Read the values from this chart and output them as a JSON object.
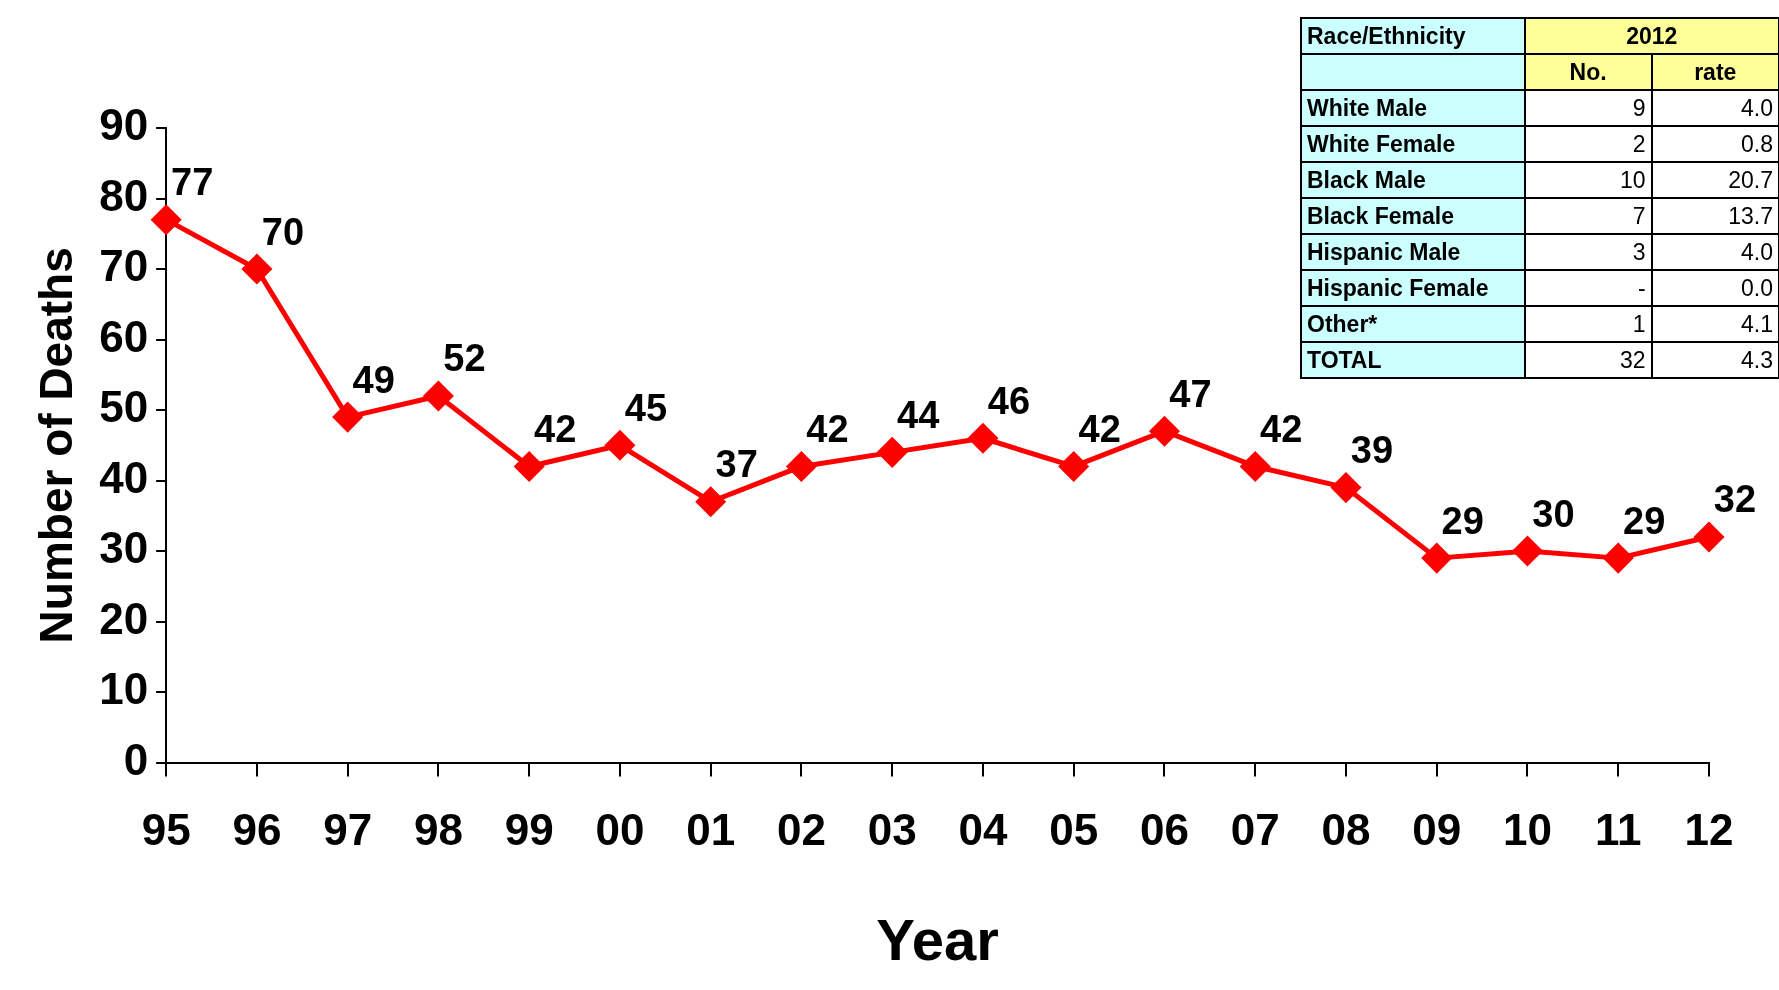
{
  "chart_data": [
    {
      "type": "line",
      "xlabel": "Year",
      "ylabel": "Number of Deaths",
      "categories": [
        "95",
        "96",
        "97",
        "98",
        "99",
        "00",
        "01",
        "02",
        "03",
        "04",
        "05",
        "06",
        "07",
        "08",
        "09",
        "10",
        "11",
        "12"
      ],
      "values": [
        77,
        70,
        49,
        52,
        42,
        45,
        37,
        42,
        44,
        46,
        42,
        47,
        42,
        39,
        29,
        30,
        29,
        32
      ],
      "color": "#ff0000",
      "marker": "diamond",
      "line_style": "solid",
      "data_labels": true,
      "ylim": [
        0,
        90
      ],
      "yticks": [
        0,
        10,
        20,
        30,
        40,
        50,
        60,
        70,
        80,
        90
      ]
    },
    {
      "type": "other",
      "annotations": [
        "Race/Ethnicity",
        "2012",
        "No.",
        "rate",
        "White Male",
        "9",
        "4.0",
        "White Female",
        "2",
        "0.8",
        "Black Male",
        "10",
        "20.7",
        "Black Female",
        "7",
        "13.7",
        "Hispanic Male",
        "3",
        "4.0",
        "Hispanic Female",
        "-",
        "0.0",
        "Other*",
        "1",
        "4.1",
        "TOTAL",
        "32",
        "4.3"
      ]
    }
  ]
}
